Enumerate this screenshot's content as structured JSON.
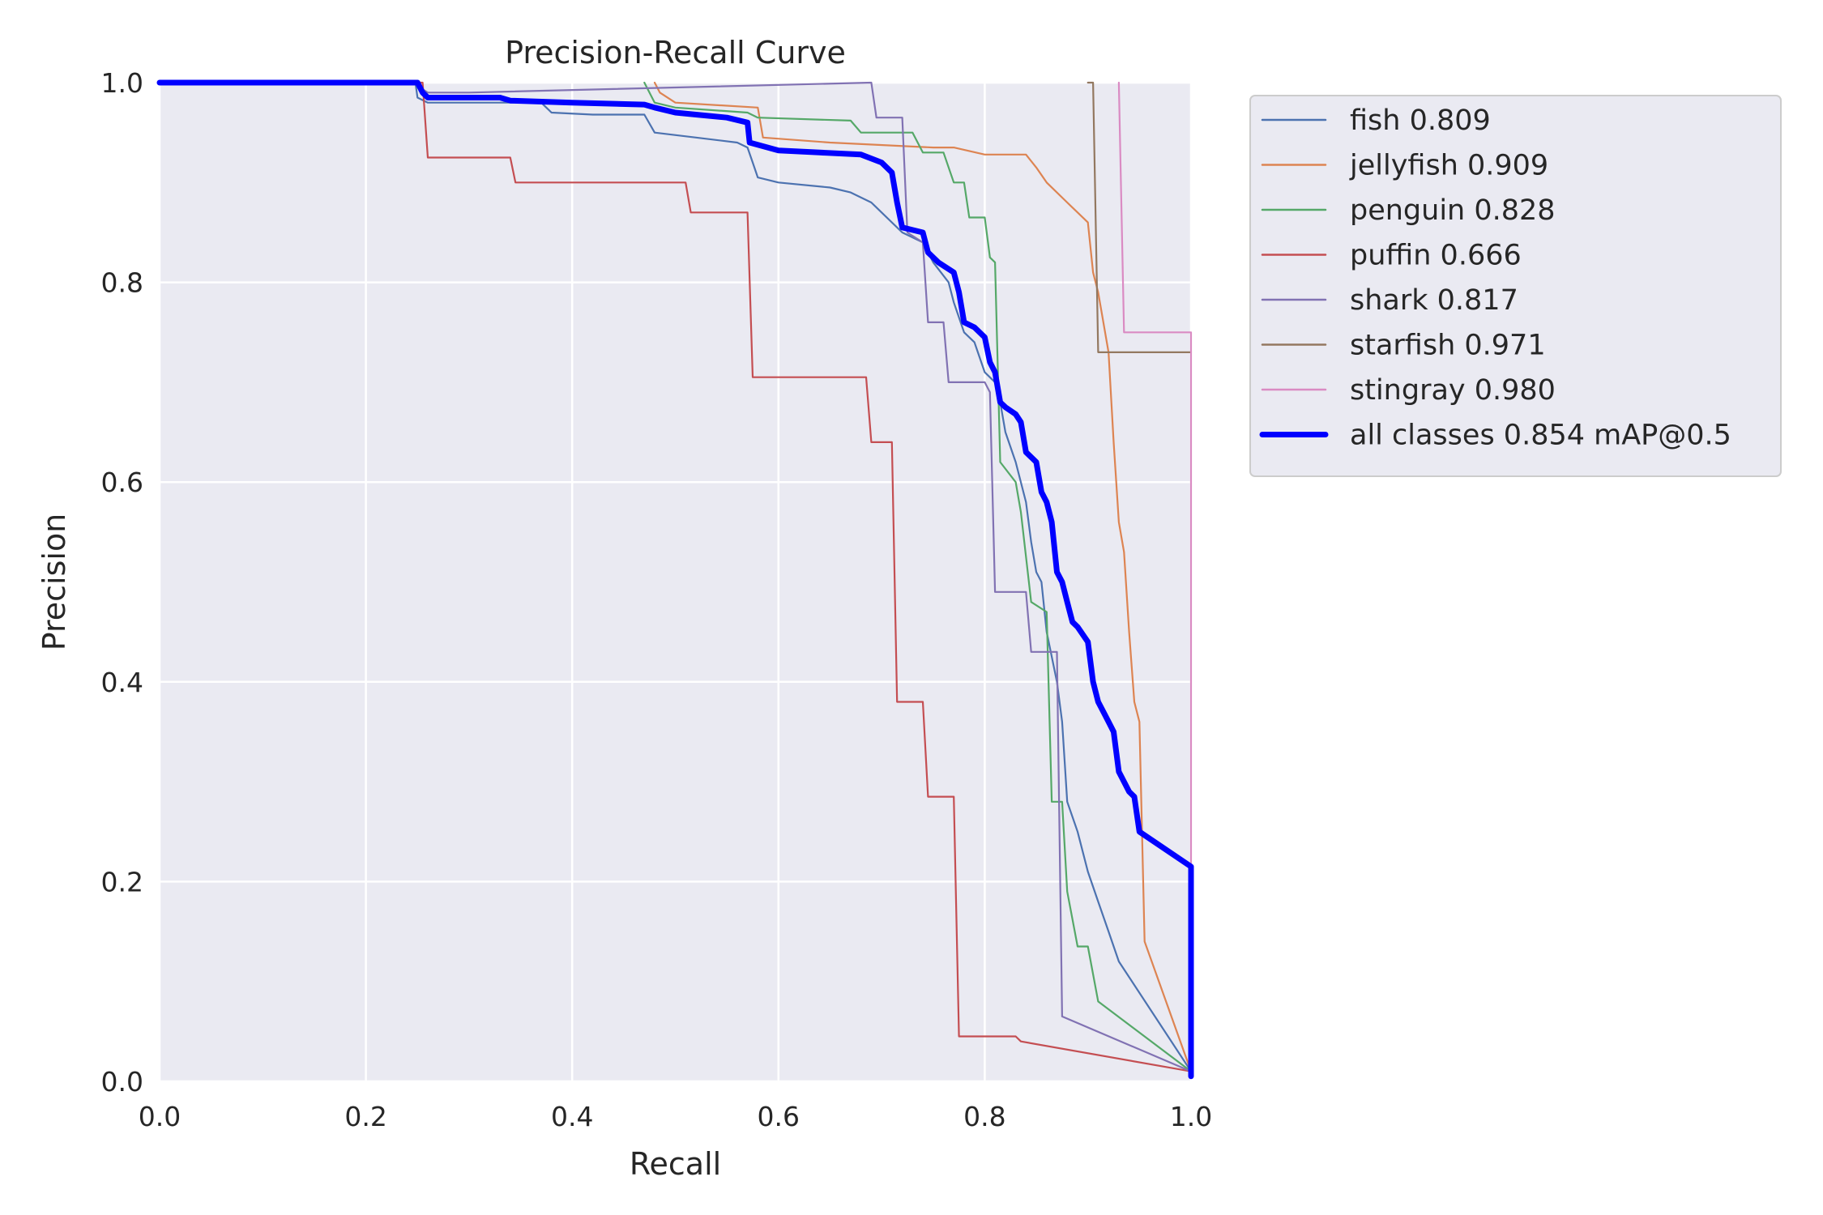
{
  "chart_data": {
    "type": "line",
    "title": "Precision-Recall Curve",
    "xlabel": "Recall",
    "ylabel": "Precision",
    "xlim": [
      0,
      1
    ],
    "ylim": [
      0,
      1
    ],
    "xticks": [
      "0.0",
      "0.2",
      "0.4",
      "0.6",
      "0.8",
      "1.0"
    ],
    "yticks": [
      "0.0",
      "0.2",
      "0.4",
      "0.6",
      "0.8",
      "1.0"
    ],
    "grid": true,
    "legend_position": "outside-top-right",
    "series": [
      {
        "name": "fish 0.809",
        "color": "#4c72b0",
        "width": "thin",
        "points": [
          [
            0,
            1
          ],
          [
            0.248,
            1
          ],
          [
            0.25,
            0.985
          ],
          [
            0.26,
            0.98
          ],
          [
            0.37,
            0.98
          ],
          [
            0.38,
            0.97
          ],
          [
            0.42,
            0.968
          ],
          [
            0.47,
            0.968
          ],
          [
            0.48,
            0.95
          ],
          [
            0.52,
            0.945
          ],
          [
            0.56,
            0.94
          ],
          [
            0.57,
            0.935
          ],
          [
            0.575,
            0.92
          ],
          [
            0.58,
            0.905
          ],
          [
            0.6,
            0.9
          ],
          [
            0.65,
            0.895
          ],
          [
            0.67,
            0.89
          ],
          [
            0.69,
            0.88
          ],
          [
            0.7,
            0.87
          ],
          [
            0.72,
            0.85
          ],
          [
            0.74,
            0.84
          ],
          [
            0.75,
            0.82
          ],
          [
            0.765,
            0.8
          ],
          [
            0.77,
            0.78
          ],
          [
            0.78,
            0.75
          ],
          [
            0.79,
            0.74
          ],
          [
            0.8,
            0.71
          ],
          [
            0.81,
            0.7
          ],
          [
            0.815,
            0.68
          ],
          [
            0.82,
            0.65
          ],
          [
            0.83,
            0.62
          ],
          [
            0.84,
            0.58
          ],
          [
            0.845,
            0.54
          ],
          [
            0.85,
            0.51
          ],
          [
            0.855,
            0.5
          ],
          [
            0.86,
            0.45
          ],
          [
            0.87,
            0.4
          ],
          [
            0.875,
            0.36
          ],
          [
            0.88,
            0.28
          ],
          [
            0.89,
            0.25
          ],
          [
            0.9,
            0.21
          ],
          [
            0.91,
            0.18
          ],
          [
            0.92,
            0.15
          ],
          [
            0.93,
            0.12
          ],
          [
            1,
            0.01
          ]
        ]
      },
      {
        "name": "jellyfish 0.909",
        "color": "#dd8452",
        "width": "thin",
        "points": [
          [
            0.48,
            1
          ],
          [
            0.485,
            0.99
          ],
          [
            0.5,
            0.98
          ],
          [
            0.58,
            0.975
          ],
          [
            0.585,
            0.945
          ],
          [
            0.65,
            0.94
          ],
          [
            0.75,
            0.935
          ],
          [
            0.77,
            0.935
          ],
          [
            0.8,
            0.928
          ],
          [
            0.84,
            0.928
          ],
          [
            0.85,
            0.915
          ],
          [
            0.86,
            0.9
          ],
          [
            0.88,
            0.88
          ],
          [
            0.9,
            0.86
          ],
          [
            0.905,
            0.81
          ],
          [
            0.91,
            0.79
          ],
          [
            0.915,
            0.76
          ],
          [
            0.92,
            0.73
          ],
          [
            0.925,
            0.64
          ],
          [
            0.93,
            0.56
          ],
          [
            0.935,
            0.53
          ],
          [
            0.94,
            0.45
          ],
          [
            0.945,
            0.38
          ],
          [
            0.95,
            0.36
          ],
          [
            0.955,
            0.14
          ],
          [
            1,
            0.01
          ]
        ]
      },
      {
        "name": "penguin 0.828",
        "color": "#55a868",
        "width": "thin",
        "points": [
          [
            0.47,
            1
          ],
          [
            0.48,
            0.98
          ],
          [
            0.5,
            0.975
          ],
          [
            0.57,
            0.97
          ],
          [
            0.58,
            0.965
          ],
          [
            0.67,
            0.962
          ],
          [
            0.68,
            0.95
          ],
          [
            0.73,
            0.95
          ],
          [
            0.74,
            0.93
          ],
          [
            0.76,
            0.93
          ],
          [
            0.77,
            0.9
          ],
          [
            0.78,
            0.9
          ],
          [
            0.785,
            0.865
          ],
          [
            0.8,
            0.865
          ],
          [
            0.805,
            0.825
          ],
          [
            0.81,
            0.82
          ],
          [
            0.815,
            0.62
          ],
          [
            0.83,
            0.6
          ],
          [
            0.835,
            0.57
          ],
          [
            0.845,
            0.48
          ],
          [
            0.86,
            0.47
          ],
          [
            0.865,
            0.28
          ],
          [
            0.875,
            0.28
          ],
          [
            0.88,
            0.19
          ],
          [
            0.89,
            0.135
          ],
          [
            0.9,
            0.135
          ],
          [
            0.91,
            0.08
          ],
          [
            1,
            0.01
          ]
        ]
      },
      {
        "name": "puffin 0.666",
        "color": "#c44e52",
        "width": "thin",
        "points": [
          [
            0.24,
            1
          ],
          [
            0.255,
            1
          ],
          [
            0.26,
            0.925
          ],
          [
            0.34,
            0.925
          ],
          [
            0.345,
            0.9
          ],
          [
            0.51,
            0.9
          ],
          [
            0.515,
            0.87
          ],
          [
            0.57,
            0.87
          ],
          [
            0.575,
            0.705
          ],
          [
            0.685,
            0.705
          ],
          [
            0.69,
            0.64
          ],
          [
            0.71,
            0.64
          ],
          [
            0.715,
            0.38
          ],
          [
            0.74,
            0.38
          ],
          [
            0.745,
            0.285
          ],
          [
            0.77,
            0.285
          ],
          [
            0.775,
            0.045
          ],
          [
            0.83,
            0.045
          ],
          [
            0.835,
            0.04
          ],
          [
            1,
            0.01
          ]
        ]
      },
      {
        "name": "shark 0.817",
        "color": "#8172b3",
        "width": "thin",
        "points": [
          [
            0.245,
            1
          ],
          [
            0.26,
            0.99
          ],
          [
            0.3,
            0.99
          ],
          [
            0.69,
            1
          ],
          [
            0.695,
            0.965
          ],
          [
            0.72,
            0.965
          ],
          [
            0.725,
            0.85
          ],
          [
            0.74,
            0.84
          ],
          [
            0.745,
            0.76
          ],
          [
            0.76,
            0.76
          ],
          [
            0.765,
            0.7
          ],
          [
            0.8,
            0.7
          ],
          [
            0.805,
            0.69
          ],
          [
            0.81,
            0.49
          ],
          [
            0.84,
            0.49
          ],
          [
            0.845,
            0.43
          ],
          [
            0.87,
            0.43
          ],
          [
            0.875,
            0.065
          ],
          [
            1,
            0.01
          ]
        ]
      },
      {
        "name": "starfish 0.971",
        "color": "#937860",
        "width": "thin",
        "points": [
          [
            0.9,
            1
          ],
          [
            0.905,
            1
          ],
          [
            0.91,
            0.73
          ],
          [
            1,
            0.73
          ]
        ]
      },
      {
        "name": "stingray 0.980",
        "color": "#da8bc3",
        "width": "thin",
        "points": [
          [
            0.93,
            1
          ],
          [
            0.935,
            0.75
          ],
          [
            1,
            0.75
          ],
          [
            1,
            0.01
          ]
        ]
      },
      {
        "name": "all classes 0.854 mAP@0.5",
        "color": "#0000ff",
        "width": "thick",
        "points": [
          [
            0,
            1
          ],
          [
            0.25,
            1
          ],
          [
            0.255,
            0.99
          ],
          [
            0.26,
            0.985
          ],
          [
            0.33,
            0.985
          ],
          [
            0.34,
            0.982
          ],
          [
            0.4,
            0.98
          ],
          [
            0.47,
            0.978
          ],
          [
            0.48,
            0.975
          ],
          [
            0.5,
            0.97
          ],
          [
            0.52,
            0.968
          ],
          [
            0.55,
            0.965
          ],
          [
            0.57,
            0.96
          ],
          [
            0.572,
            0.94
          ],
          [
            0.6,
            0.932
          ],
          [
            0.64,
            0.93
          ],
          [
            0.68,
            0.928
          ],
          [
            0.7,
            0.92
          ],
          [
            0.71,
            0.91
          ],
          [
            0.715,
            0.88
          ],
          [
            0.72,
            0.855
          ],
          [
            0.74,
            0.85
          ],
          [
            0.745,
            0.83
          ],
          [
            0.755,
            0.82
          ],
          [
            0.77,
            0.81
          ],
          [
            0.775,
            0.79
          ],
          [
            0.78,
            0.76
          ],
          [
            0.79,
            0.755
          ],
          [
            0.8,
            0.745
          ],
          [
            0.805,
            0.72
          ],
          [
            0.81,
            0.71
          ],
          [
            0.815,
            0.68
          ],
          [
            0.82,
            0.675
          ],
          [
            0.83,
            0.668
          ],
          [
            0.835,
            0.66
          ],
          [
            0.84,
            0.63
          ],
          [
            0.85,
            0.62
          ],
          [
            0.855,
            0.59
          ],
          [
            0.86,
            0.58
          ],
          [
            0.865,
            0.56
          ],
          [
            0.87,
            0.51
          ],
          [
            0.875,
            0.5
          ],
          [
            0.88,
            0.48
          ],
          [
            0.885,
            0.46
          ],
          [
            0.89,
            0.455
          ],
          [
            0.9,
            0.44
          ],
          [
            0.905,
            0.4
          ],
          [
            0.91,
            0.38
          ],
          [
            0.915,
            0.37
          ],
          [
            0.92,
            0.36
          ],
          [
            0.925,
            0.35
          ],
          [
            0.93,
            0.31
          ],
          [
            0.935,
            0.3
          ],
          [
            0.94,
            0.29
          ],
          [
            0.945,
            0.285
          ],
          [
            0.95,
            0.25
          ],
          [
            1,
            0.215
          ],
          [
            1,
            0.005
          ]
        ]
      }
    ]
  }
}
